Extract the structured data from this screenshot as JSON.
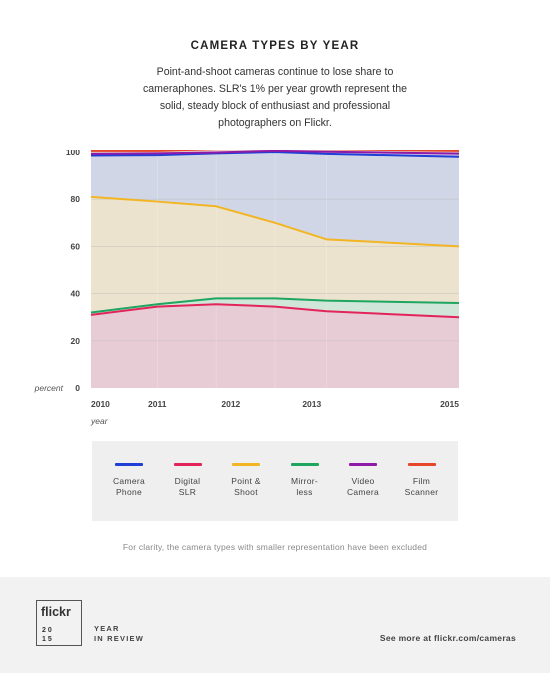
{
  "header": {
    "title": "CAMERA TYPES BY YEAR",
    "subtitle": "Point-and-shoot cameras continue to lose share to cameraphones. SLR's 1% per year growth represent the solid, steady block of enthusiast and professional photographers on Flickr."
  },
  "chart_data": {
    "type": "area",
    "title": "",
    "xlabel": "year",
    "ylabel": "percent",
    "x": [
      2010,
      2010.9,
      2011.7,
      2012.5,
      2013.2,
      2015
    ],
    "x_ticks": [
      "2010",
      "2011",
      "2012",
      "2013",
      "2015"
    ],
    "y_ticks": [
      "0",
      "20",
      "40",
      "60",
      "80",
      "100"
    ],
    "ylim": [
      0,
      100
    ],
    "grid": true,
    "stacked": true,
    "series": [
      {
        "name": "Digital SLR",
        "color": "#e2245a",
        "fill": "#e8ccd5",
        "values": [
          31,
          34.5,
          35.5,
          34.5,
          32.5,
          30
        ]
      },
      {
        "name": "Mirrorless",
        "color": "#1ea660",
        "fill": "#cfe6d8",
        "values": [
          32,
          35.5,
          38,
          38,
          37,
          36
        ]
      },
      {
        "name": "Point & Shoot",
        "color": "#f2b523",
        "fill": "#ece3cf",
        "values": [
          81,
          79,
          77,
          70,
          63,
          60
        ]
      },
      {
        "name": "Camera Phone",
        "color": "#1f3fd6",
        "fill": "#d1d6e7",
        "values": [
          98.5,
          98.7,
          99.4,
          100,
          99.2,
          98
        ]
      },
      {
        "name": "Video Camera",
        "color": "#8e1aa8",
        "fill": "#d8cdea",
        "values": [
          99.2,
          99.4,
          99.8,
          100.5,
          100.1,
          99.3
        ]
      },
      {
        "name": "Film Scanner",
        "color": "#e8462b",
        "fill": "#f0d3cc",
        "values": [
          100.5,
          100.5,
          101.2,
          101.4,
          101.2,
          100.5
        ]
      }
    ]
  },
  "legend": [
    {
      "label": "Camera\nPhone",
      "color": "#1f3fd6"
    },
    {
      "label": "Digital\nSLR",
      "color": "#e2245a"
    },
    {
      "label": "Point &\nShoot",
      "color": "#f2b523"
    },
    {
      "label": "Mirror-\nless",
      "color": "#1ea660"
    },
    {
      "label": "Video\nCamera",
      "color": "#8e1aa8"
    },
    {
      "label": "Film\nScanner",
      "color": "#e8462b"
    }
  ],
  "note": "For clarity, the camera types with smaller representation have been excluded",
  "footer": {
    "logo": "flickr",
    "year_line1": "20",
    "year_line2": "15",
    "yir_line1": "YEAR",
    "yir_line2": "IN REVIEW",
    "see_more": "See more at flickr.com/cameras"
  }
}
